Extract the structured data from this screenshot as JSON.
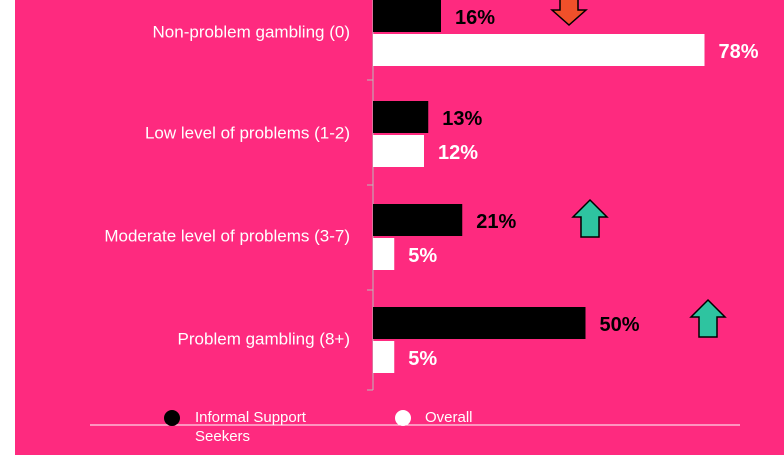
{
  "chart_data": {
    "type": "hbar",
    "categories": [
      "Non-problem gambling (0)",
      "Low level of problems (1-2)",
      "Moderate level of problems (3-7)",
      "Problem gambling (8+)"
    ],
    "series": [
      {
        "name": "Informal Support Seekers",
        "color": "#000000",
        "values": [
          16,
          13,
          21,
          50
        ],
        "value_labels": [
          "16%",
          "13%",
          "21%",
          "50%"
        ]
      },
      {
        "name": "Overall",
        "color": "#ffffff",
        "values": [
          78,
          12,
          5,
          5
        ],
        "value_labels": [
          "78%",
          "12%",
          "5%",
          "5%"
        ]
      }
    ],
    "xlim": [
      0,
      100
    ],
    "legend": "bottom"
  }
}
